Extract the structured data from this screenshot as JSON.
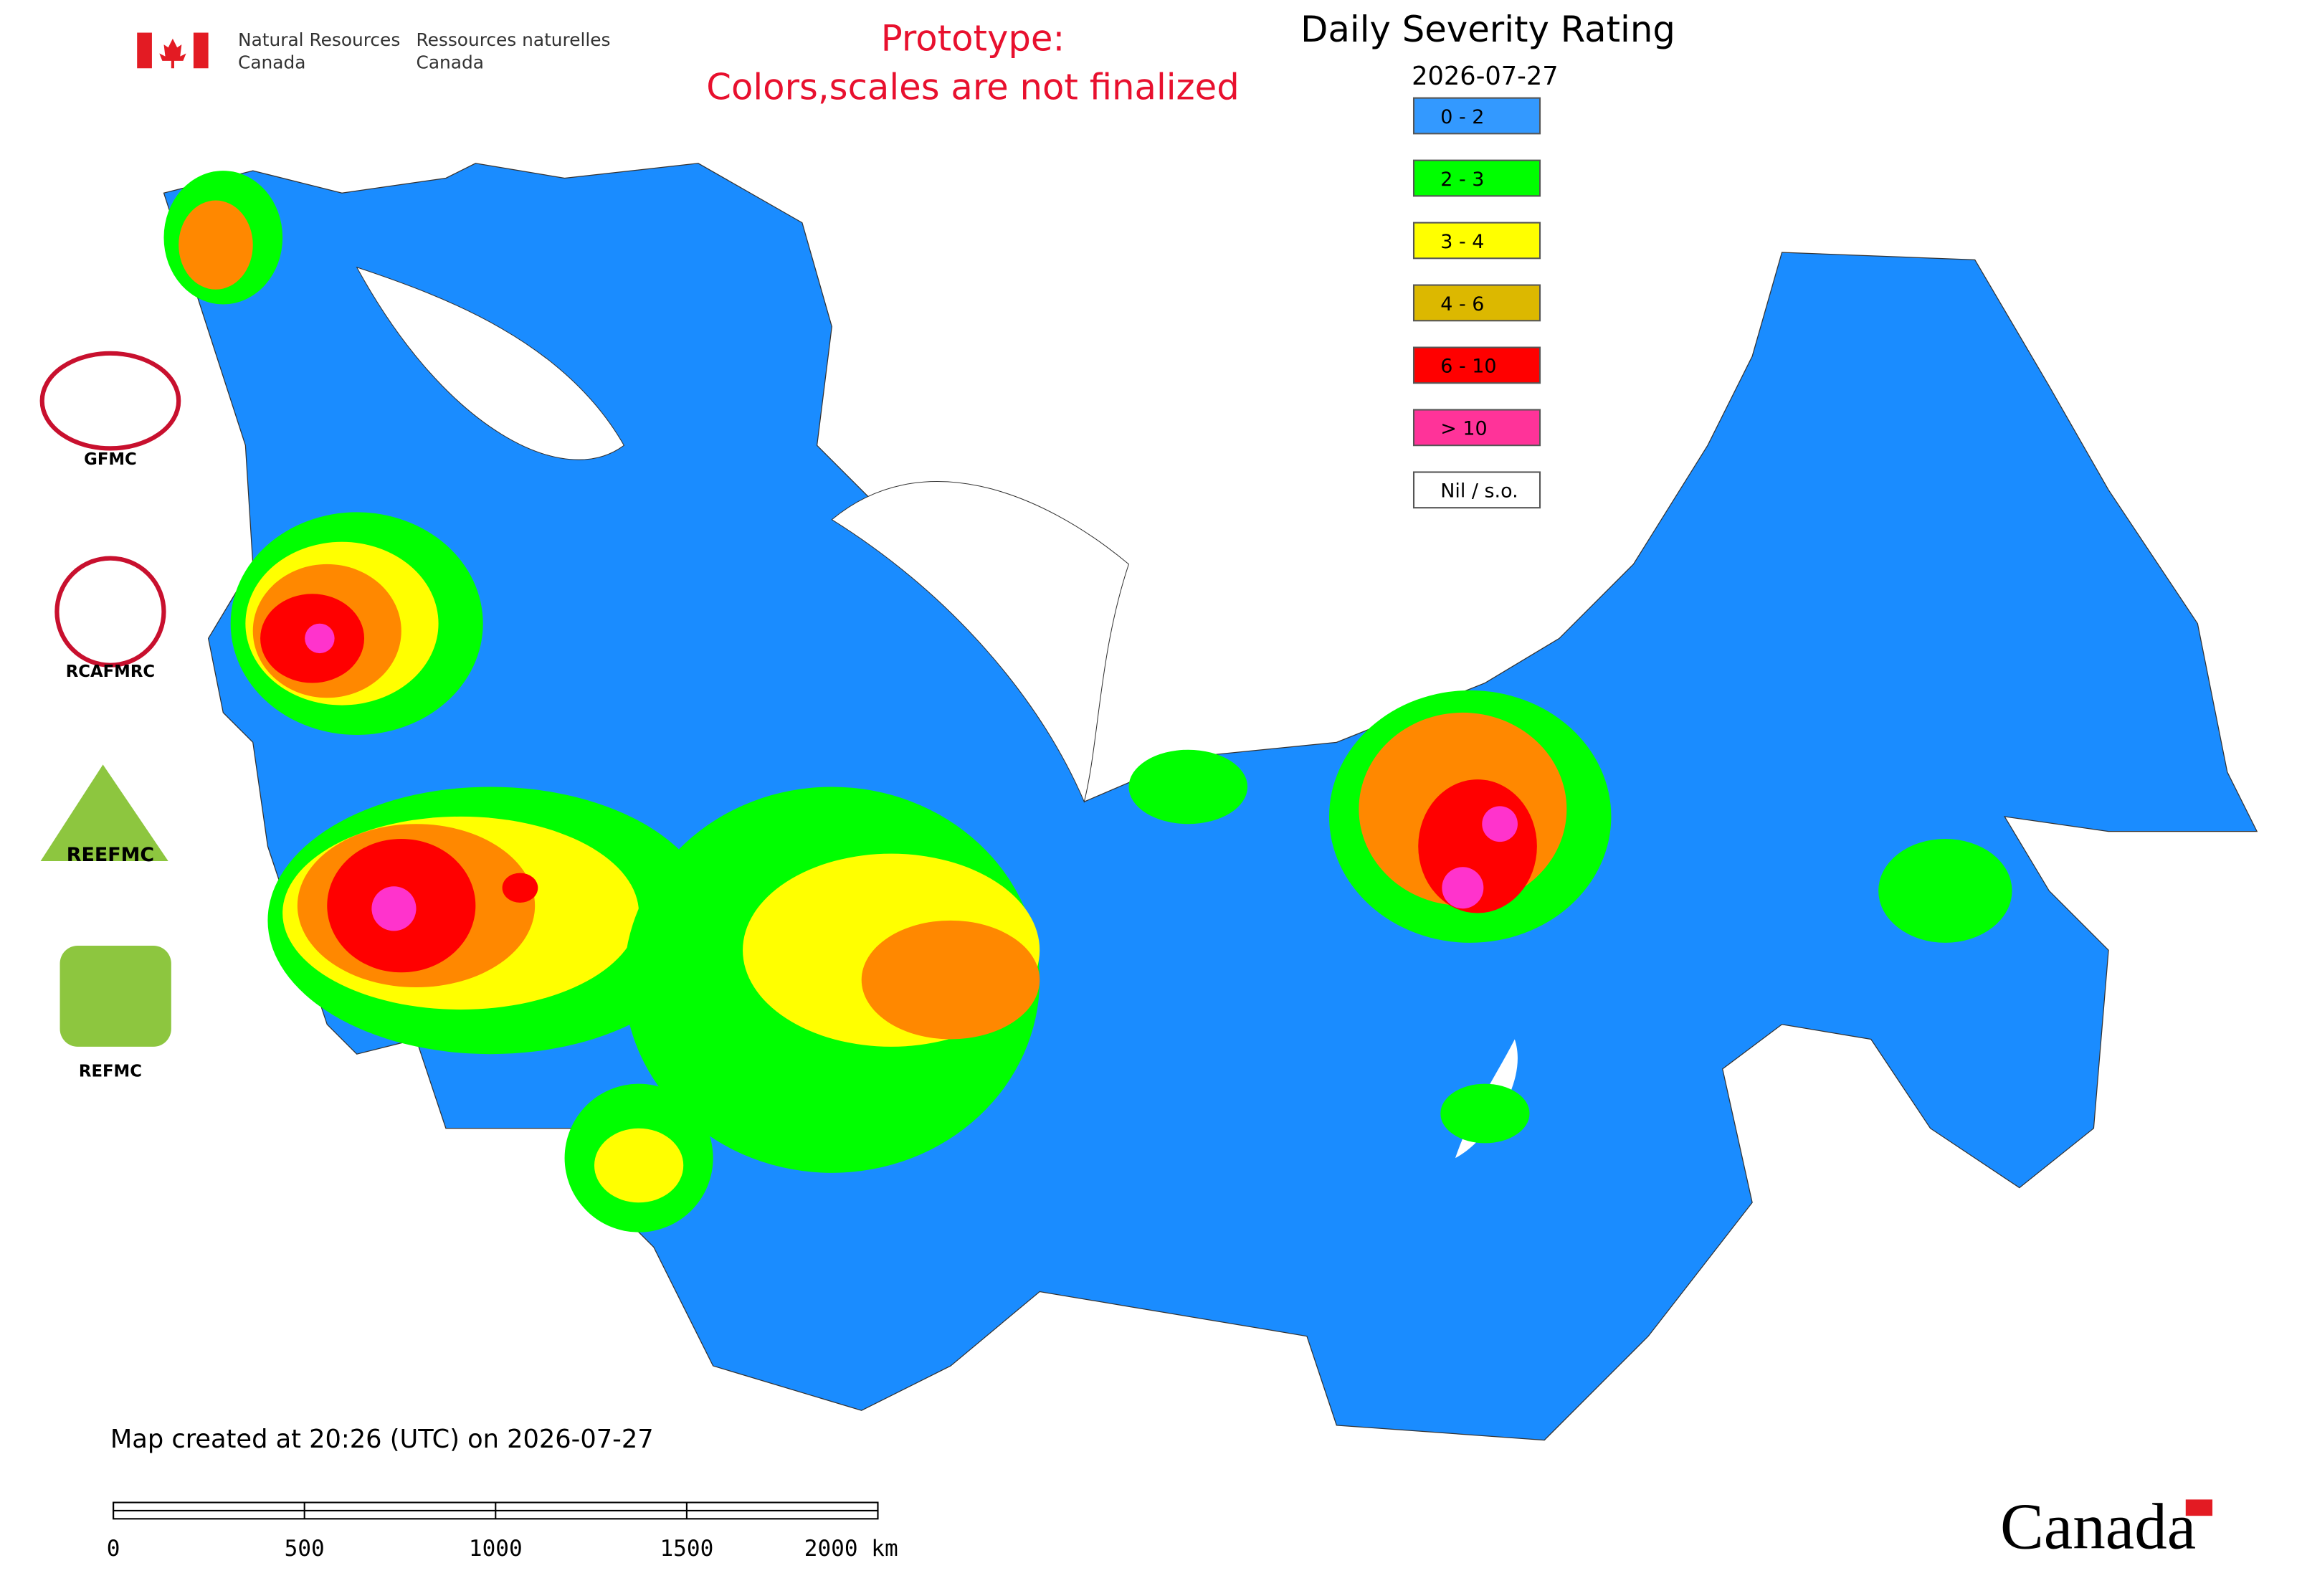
{
  "agency": {
    "en_line1": "Natural Resources",
    "en_line2": "Canada",
    "fr_line1": "Ressources naturelles",
    "fr_line2": "Canada"
  },
  "notice": {
    "line1": "Prototype:",
    "line2": "Colors,scales are not finalized"
  },
  "title": "Daily Severity Rating",
  "date": "2026-07-27",
  "legend": [
    {
      "label": "0 - 2",
      "color": "#3399ff"
    },
    {
      "label": "2 - 3",
      "color": "#00ff00"
    },
    {
      "label": "3 - 4",
      "color": "#ffff00"
    },
    {
      "label": "4 - 6",
      "color": "#dcb800"
    },
    {
      "label": "6 - 10",
      "color": "#ff0000"
    },
    {
      "label": "> 10",
      "color": "#ff3399"
    },
    {
      "label": "Nil / s.o.",
      "color": "#ffffff"
    }
  ],
  "logos": [
    "GFMC",
    "RCAFMRC",
    "REEFMC",
    "REFMC"
  ],
  "footer": "Map created at 20:26 (UTC) on 2026-07-27",
  "scale_bar": [
    "0",
    "500",
    "1000",
    "1500",
    "2000 km"
  ],
  "wordmark": "Canada"
}
